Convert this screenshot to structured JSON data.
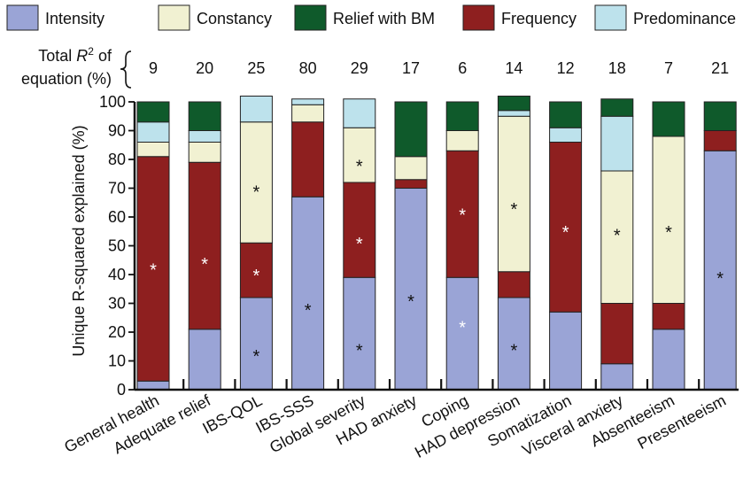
{
  "chart_data": {
    "type": "bar",
    "stacked": true,
    "orientation": "vertical",
    "ylabel": "Unique R-squared explained (%)",
    "ylim": [
      0,
      100
    ],
    "yticks": [
      0,
      10,
      20,
      30,
      40,
      50,
      60,
      70,
      80,
      90,
      100
    ],
    "legend_position": "top",
    "r2_label_line1_pre": "Total ",
    "r2_label_r": "R",
    "r2_label_sup": "2",
    "r2_label_line1_post": " of",
    "r2_label_line2": "equation (%)",
    "categories": [
      "General health",
      "Adequate relief",
      "IBS-QOL",
      "IBS-SSS",
      "Global severity",
      "HAD anxiety",
      "Coping",
      "HAD depression",
      "Somatization",
      "Visceral anxiety",
      "Absenteeism",
      "Presenteeism"
    ],
    "total_r2": [
      "9",
      "20",
      "25",
      "80",
      "29",
      "17",
      "6",
      "14",
      "12",
      "18",
      "7",
      "21"
    ],
    "series": [
      {
        "name": "Intensity",
        "color": "#9aa4d6",
        "values": [
          3,
          21,
          32,
          67,
          39,
          70,
          39,
          32,
          27,
          9,
          21,
          83
        ]
      },
      {
        "name": "Frequency",
        "color": "#8e1f1f",
        "values": [
          78,
          58,
          19,
          26,
          33,
          3,
          44,
          9,
          59,
          21,
          9,
          7
        ]
      },
      {
        "name": "Constancy",
        "color": "#f1f1d2",
        "values": [
          5,
          7,
          42,
          6,
          19,
          8,
          7,
          54,
          0,
          46,
          58,
          0
        ]
      },
      {
        "name": "Predominance",
        "color": "#bde2ec",
        "values": [
          7,
          4,
          9,
          2,
          10,
          0,
          0,
          2,
          5,
          19,
          0,
          0
        ]
      },
      {
        "name": "Relief with BM",
        "color": "#0f5a2b",
        "values": [
          7,
          10,
          0,
          0,
          0,
          19,
          10,
          5,
          9,
          6,
          12,
          10
        ]
      }
    ],
    "legend_order": [
      "Intensity",
      "Constancy",
      "Relief with BM",
      "Frequency",
      "Predominance"
    ],
    "significance_marker": "*",
    "significance": [
      {
        "category": 0,
        "series": "Frequency",
        "y": 43,
        "color": "white"
      },
      {
        "category": 1,
        "series": "Frequency",
        "y": 45,
        "color": "white"
      },
      {
        "category": 2,
        "series": "Constancy",
        "y": 70,
        "color": "black"
      },
      {
        "category": 2,
        "series": "Frequency",
        "y": 41,
        "color": "white"
      },
      {
        "category": 2,
        "series": "Intensity",
        "y": 13,
        "color": "black"
      },
      {
        "category": 3,
        "series": "Intensity",
        "y": 29,
        "color": "black"
      },
      {
        "category": 4,
        "series": "Constancy",
        "y": 79,
        "color": "black"
      },
      {
        "category": 4,
        "series": "Frequency",
        "y": 52,
        "color": "white"
      },
      {
        "category": 4,
        "series": "Intensity",
        "y": 15,
        "color": "black"
      },
      {
        "category": 5,
        "series": "Intensity",
        "y": 32,
        "color": "black"
      },
      {
        "category": 6,
        "series": "Frequency",
        "y": 62,
        "color": "white"
      },
      {
        "category": 6,
        "series": "Intensity",
        "y": 23,
        "color": "white"
      },
      {
        "category": 7,
        "series": "Constancy",
        "y": 64,
        "color": "black"
      },
      {
        "category": 7,
        "series": "Intensity",
        "y": 15,
        "color": "black"
      },
      {
        "category": 8,
        "series": "Frequency",
        "y": 56,
        "color": "white"
      },
      {
        "category": 9,
        "series": "Constancy",
        "y": 55,
        "color": "black"
      },
      {
        "category": 10,
        "series": "Constancy",
        "y": 56,
        "color": "black"
      },
      {
        "category": 11,
        "series": "Intensity",
        "y": 40,
        "color": "black"
      }
    ]
  }
}
